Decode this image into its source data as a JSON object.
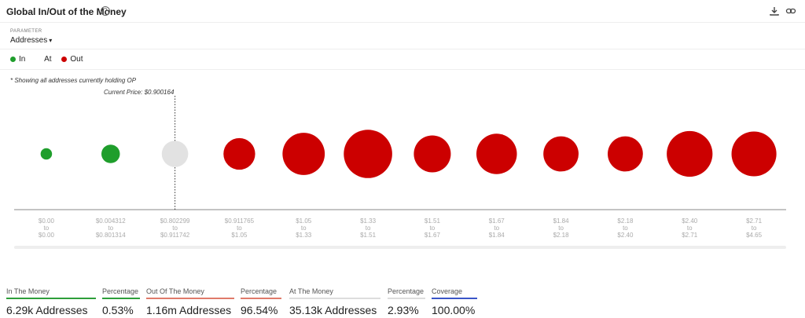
{
  "header": {
    "title": "Global In/Out of the Money",
    "help_glyph": "?"
  },
  "parameter": {
    "label": "PARAMETER",
    "value": "Addresses"
  },
  "legend": {
    "items": [
      {
        "label": "In",
        "color": "#1f9e2c"
      },
      {
        "label": "At",
        "color": "#dddddd"
      },
      {
        "label": "Out",
        "color": "#cc0000"
      }
    ]
  },
  "note": "* Showing all addresses currently holding OP",
  "current_price_label": "Current Price: $0.900164",
  "chart_data": {
    "type": "scatter",
    "subtype": "bubble",
    "categories": [
      [
        "$0.00",
        "to",
        "$0.00"
      ],
      [
        "$0.004312",
        "to",
        "$0.801314"
      ],
      [
        "$0.802299",
        "to",
        "$0.911742"
      ],
      [
        "$0.911765",
        "to",
        "$1.05"
      ],
      [
        "$1.05",
        "to",
        "$1.33"
      ],
      [
        "$1.33",
        "to",
        "$1.51"
      ],
      [
        "$1.51",
        "to",
        "$1.67"
      ],
      [
        "$1.67",
        "to",
        "$1.84"
      ],
      [
        "$1.84",
        "to",
        "$2.18"
      ],
      [
        "$2.18",
        "to",
        "$2.40"
      ],
      [
        "$2.40",
        "to",
        "$2.71"
      ],
      [
        "$2.71",
        "to",
        "$4.65"
      ]
    ],
    "status": [
      "in",
      "in",
      "at",
      "out",
      "out",
      "out",
      "out",
      "out",
      "out",
      "out",
      "out",
      "out"
    ],
    "relative_size": [
      0.13,
      0.21,
      0.3,
      0.36,
      0.48,
      0.55,
      0.42,
      0.46,
      0.4,
      0.4,
      0.52,
      0.51
    ],
    "colors": {
      "in": "#1f9e2c",
      "at": "#e2e2e2",
      "out": "#cc0000"
    },
    "current_price": 0.900164,
    "current_price_category_index": 2,
    "grid": false
  },
  "stats": [
    {
      "label": "In The Money",
      "value": "6.29k Addresses",
      "bar_color": "#2e9e3a"
    },
    {
      "label": "Percentage",
      "value": "0.53%",
      "bar_color": "#2e9e3a"
    },
    {
      "label": "Out Of The Money",
      "value": "1.16m Addresses",
      "bar_color": "#e07a6a"
    },
    {
      "label": "Percentage",
      "value": "96.54%",
      "bar_color": "#e07a6a"
    },
    {
      "label": "At The Money",
      "value": "35.13k Addresses",
      "bar_color": "#dddddd"
    },
    {
      "label": "Percentage",
      "value": "2.93%",
      "bar_color": "#dddddd"
    },
    {
      "label": "Coverage",
      "value": "100.00%",
      "bar_color": "#3a55c8"
    }
  ]
}
